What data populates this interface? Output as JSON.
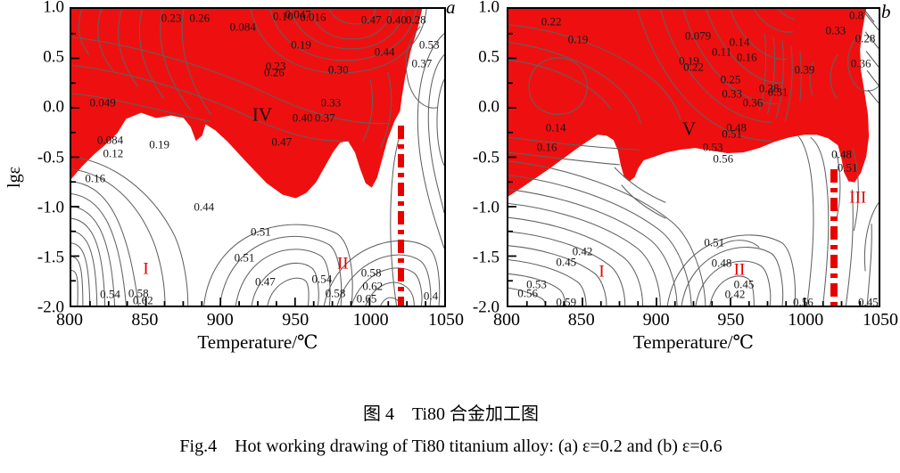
{
  "figure": {
    "caption_cn": "图 4　Ti80 合金加工图",
    "caption_en": "Fig.4　Hot working drawing of Ti80 titanium alloy: (a) ε=0.2 and (b) ε=0.6"
  },
  "colors": {
    "instability_fill": "#ee1010",
    "contour_line": "#616161",
    "annotation_red": "#e60000",
    "axis_black": "#000000"
  },
  "chart_data": [
    {
      "type": "contour",
      "panel_letter": "a",
      "title": "(a) ε=0.2",
      "xlabel": "Temperature/℃",
      "ylabel": "lgε",
      "xlim": [
        800,
        1050
      ],
      "ylim": [
        -2.0,
        1.0
      ],
      "x_ticks": [
        "800",
        "850",
        "900",
        "950",
        "1000",
        "1050"
      ],
      "y_ticks": [
        "1.0",
        "0.5",
        "0.0",
        "-0.5",
        "-1.0",
        "-1.5",
        "-2.0"
      ],
      "grid": false,
      "instability_region": "red shaded domain covering most of the upper half (lg strain rate > ≈ -0.8), dipping to ≈ -0.9 near 905 ℃ and receding near both temperature ends",
      "dash_line": {
        "T": 1021,
        "lg_top": -0.18,
        "lg_bottom": -2.0,
        "w": 7
      },
      "contour_labels": [
        {
          "v": "0.23",
          "T": 867,
          "lg": 0.91
        },
        {
          "v": "0.26",
          "T": 886,
          "lg": 0.91
        },
        {
          "v": "0.084",
          "T": 915,
          "lg": 0.82
        },
        {
          "v": "0.10",
          "T": 942,
          "lg": 0.93
        },
        {
          "v": "0.047",
          "T": 952,
          "lg": 0.95
        },
        {
          "v": "0.016",
          "T": 962,
          "lg": 0.92
        },
        {
          "v": "0.19",
          "T": 954,
          "lg": 0.64
        },
        {
          "v": "0.47",
          "T": 1001,
          "lg": 0.89
        },
        {
          "v": "0.40",
          "T": 1018,
          "lg": 0.89
        },
        {
          "v": "0.28",
          "T": 1031,
          "lg": 0.89
        },
        {
          "v": "0.44",
          "T": 1010,
          "lg": 0.57
        },
        {
          "v": "0.53",
          "T": 1040,
          "lg": 0.64
        },
        {
          "v": "0.37",
          "T": 1035,
          "lg": 0.45
        },
        {
          "v": "0.23",
          "T": 937,
          "lg": 0.42
        },
        {
          "v": "0.26",
          "T": 936,
          "lg": 0.36
        },
        {
          "v": "0.30",
          "T": 979,
          "lg": 0.39
        },
        {
          "v": "0.33",
          "T": 974,
          "lg": 0.05
        },
        {
          "v": "0.40",
          "T": 955,
          "lg": -0.1
        },
        {
          "v": "0.37",
          "T": 970,
          "lg": -0.1
        },
        {
          "v": "0.47",
          "T": 941,
          "lg": -0.34
        },
        {
          "v": "0.049",
          "T": 821,
          "lg": 0.05
        },
        {
          "v": "0.084",
          "T": 826,
          "lg": -0.32
        },
        {
          "v": "0.12",
          "T": 828,
          "lg": -0.46
        },
        {
          "v": "0.19",
          "T": 859,
          "lg": -0.37
        },
        {
          "v": "0.16",
          "T": 816,
          "lg": -0.71
        },
        {
          "v": "0.44",
          "T": 889,
          "lg": -1.0
        },
        {
          "v": "0.51",
          "T": 927,
          "lg": -1.25
        },
        {
          "v": "0.51",
          "T": 916,
          "lg": -1.51
        },
        {
          "v": "0.47",
          "T": 930,
          "lg": -1.76
        },
        {
          "v": "0.54",
          "T": 826,
          "lg": -1.88
        },
        {
          "v": "0.58",
          "T": 845,
          "lg": -1.87
        },
        {
          "v": "0.62",
          "T": 848,
          "lg": -1.95
        },
        {
          "v": "0.54",
          "T": 968,
          "lg": -1.73
        },
        {
          "v": "0.58",
          "T": 1001,
          "lg": -1.67
        },
        {
          "v": "0.62",
          "T": 1002,
          "lg": -1.8
        },
        {
          "v": "0.58",
          "T": 977,
          "lg": -1.87
        },
        {
          "v": "0.65",
          "T": 998,
          "lg": -1.93
        },
        {
          "v": "0.4",
          "T": 1041,
          "lg": -1.9
        }
      ],
      "region_labels": [
        {
          "t": "I",
          "T": 850,
          "lg": -1.63,
          "color": "red"
        },
        {
          "t": "II",
          "T": 982,
          "lg": -1.58,
          "color": "red"
        },
        {
          "t": "IV",
          "T": 928,
          "lg": -0.07,
          "color": "black"
        }
      ]
    },
    {
      "type": "contour",
      "panel_letter": "b",
      "title": "(b) ε=0.6",
      "xlabel": "Temperature/℃",
      "ylabel": "lgε",
      "xlim": [
        800,
        1050
      ],
      "ylim": [
        -2.0,
        1.0
      ],
      "x_ticks": [
        "800",
        "850",
        "900",
        "950",
        "1000",
        "1050"
      ],
      "y_ticks": [
        "1.0",
        "0.5",
        "0.0",
        "-0.5",
        "-1.0",
        "-1.5",
        "-2.0"
      ],
      "grid": false,
      "instability_region": "red shaded domain covering the upper part (lg strain rate > ≈ -0.55), reaching ≈ -0.9 at the left edge, with a hatched white strip at the top-right corner",
      "dash_line": {
        "T": 1020,
        "lg_top": -0.62,
        "lg_bottom": -2.0,
        "w": 8
      },
      "contour_labels": [
        {
          "v": "0.22",
          "T": 829,
          "lg": 0.87
        },
        {
          "v": "0.19",
          "T": 847,
          "lg": 0.69
        },
        {
          "v": "0.079",
          "T": 928,
          "lg": 0.73
        },
        {
          "v": "0.14",
          "T": 956,
          "lg": 0.67
        },
        {
          "v": "0.11",
          "T": 944,
          "lg": 0.57
        },
        {
          "v": "0.19",
          "T": 922,
          "lg": 0.48
        },
        {
          "v": "0.22",
          "T": 925,
          "lg": 0.41
        },
        {
          "v": "0.16",
          "T": 961,
          "lg": 0.51
        },
        {
          "v": "0.39",
          "T": 1000,
          "lg": 0.39
        },
        {
          "v": "0.25",
          "T": 950,
          "lg": 0.29
        },
        {
          "v": "0.28",
          "T": 976,
          "lg": 0.2
        },
        {
          "v": "0.31",
          "T": 982,
          "lg": 0.16
        },
        {
          "v": "0.33",
          "T": 951,
          "lg": 0.14
        },
        {
          "v": "0.36",
          "T": 965,
          "lg": 0.05
        },
        {
          "v": "0.36",
          "T": 1038,
          "lg": 0.45
        },
        {
          "v": "0.33",
          "T": 1021,
          "lg": 0.78
        },
        {
          "v": "0.8",
          "T": 1035,
          "lg": 0.94
        },
        {
          "v": "0.28",
          "T": 1041,
          "lg": 0.7
        },
        {
          "v": "0.14",
          "T": 832,
          "lg": -0.2
        },
        {
          "v": "0.16",
          "T": 826,
          "lg": -0.4
        },
        {
          "v": "0.48",
          "T": 954,
          "lg": -0.2
        },
        {
          "v": "0.51",
          "T": 951,
          "lg": -0.26
        },
        {
          "v": "0.53",
          "T": 938,
          "lg": -0.4
        },
        {
          "v": "0.56",
          "T": 945,
          "lg": -0.51
        },
        {
          "v": "0.48",
          "T": 1025,
          "lg": -0.47
        },
        {
          "v": "0.51",
          "T": 1029,
          "lg": -0.6
        },
        {
          "v": "0.42",
          "T": 850,
          "lg": -1.45
        },
        {
          "v": "0.45",
          "T": 839,
          "lg": -1.56
        },
        {
          "v": "0.53",
          "T": 819,
          "lg": -1.78
        },
        {
          "v": "0.56",
          "T": 813,
          "lg": -1.87
        },
        {
          "v": "0.59",
          "T": 839,
          "lg": -1.96
        },
        {
          "v": "0.51",
          "T": 939,
          "lg": -1.36
        },
        {
          "v": "0.48",
          "T": 944,
          "lg": -1.57
        },
        {
          "v": "0.45",
          "T": 959,
          "lg": -1.78
        },
        {
          "v": "0.42",
          "T": 953,
          "lg": -1.88
        },
        {
          "v": "0.56",
          "T": 999,
          "lg": -1.96
        },
        {
          "v": "0.45",
          "T": 1043,
          "lg": -1.96
        }
      ],
      "region_labels": [
        {
          "t": "I",
          "T": 863,
          "lg": -1.66,
          "color": "red"
        },
        {
          "t": "II",
          "T": 956,
          "lg": -1.64,
          "color": "red"
        },
        {
          "t": "III",
          "T": 1036,
          "lg": -0.91,
          "color": "red"
        },
        {
          "t": "V",
          "T": 922,
          "lg": -0.22,
          "color": "black"
        }
      ]
    }
  ]
}
